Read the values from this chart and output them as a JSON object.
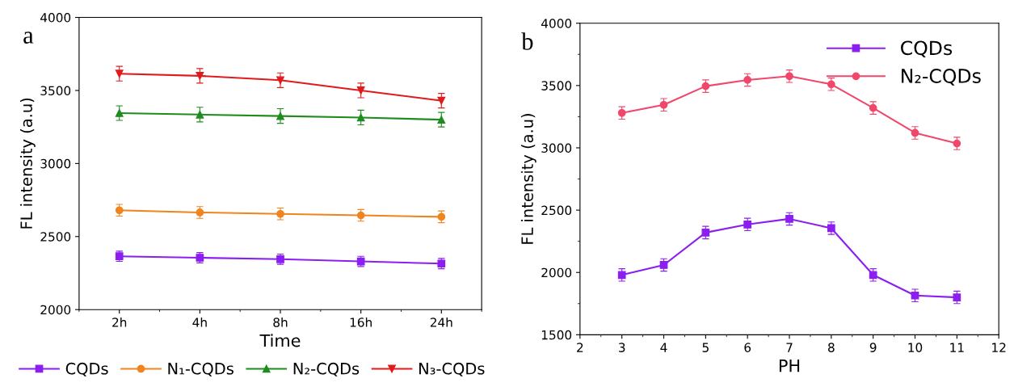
{
  "chart_data": [
    {
      "type": "line",
      "title": "a",
      "xlabel": "Time",
      "ylabel": "FL intensity (a.u)",
      "categories": [
        "2h",
        "4h",
        "8h",
        "16h",
        "24h"
      ],
      "ylim": [
        2000,
        4000
      ],
      "yticks": [
        2000,
        2500,
        3000,
        3500,
        4000
      ],
      "legend": "bottom",
      "grid": false,
      "line_style": "solid",
      "series": [
        {
          "name": "CQDs",
          "color": "#8b1ef0",
          "marker": "square",
          "values": [
            2365,
            2355,
            2345,
            2330,
            2315
          ],
          "errors": [
            35,
            35,
            35,
            35,
            35
          ]
        },
        {
          "name": "N₁-CQDs",
          "color": "#f0841e",
          "marker": "circle",
          "values": [
            2680,
            2665,
            2655,
            2645,
            2635
          ],
          "errors": [
            40,
            40,
            40,
            40,
            40
          ]
        },
        {
          "name": "N₂-CQDs",
          "color": "#1e8c1e",
          "marker": "triangle",
          "values": [
            3345,
            3335,
            3325,
            3315,
            3300
          ],
          "errors": [
            50,
            50,
            50,
            50,
            50
          ]
        },
        {
          "name": "N₃-CQDs",
          "color": "#e01b1b",
          "marker": "triangle-down",
          "values": [
            3615,
            3600,
            3570,
            3500,
            3430
          ],
          "errors": [
            50,
            50,
            50,
            50,
            50
          ]
        }
      ]
    },
    {
      "type": "line",
      "title": "b",
      "xlabel": "PH",
      "ylabel": "FL intensity (a.u)",
      "x": [
        3,
        4,
        5,
        6,
        7,
        8,
        9,
        10,
        11
      ],
      "xlim": [
        2,
        12
      ],
      "xticks": [
        2,
        3,
        4,
        5,
        6,
        7,
        8,
        9,
        10,
        11,
        12
      ],
      "ylim": [
        1500,
        4000
      ],
      "yticks": [
        1500,
        2000,
        2500,
        3000,
        3500,
        4000
      ],
      "legend": "top right",
      "grid": false,
      "line_style": "solid",
      "series": [
        {
          "name": "CQDs",
          "color": "#8b1ef0",
          "marker": "square",
          "values": [
            1980,
            2060,
            2320,
            2385,
            2430,
            2355,
            1980,
            1815,
            1800
          ],
          "errors": [
            50,
            50,
            50,
            50,
            50,
            50,
            50,
            50,
            50
          ]
        },
        {
          "name": "N₂-CQDs",
          "color": "#f0476a",
          "marker": "circle",
          "values": [
            3280,
            3345,
            3495,
            3545,
            3575,
            3510,
            3320,
            3120,
            3035
          ],
          "errors": [
            50,
            50,
            50,
            50,
            50,
            50,
            50,
            50,
            50
          ]
        }
      ]
    }
  ]
}
